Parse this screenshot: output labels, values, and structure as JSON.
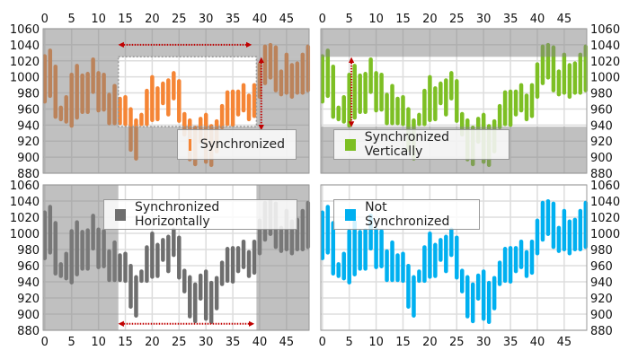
{
  "chart_data": [
    {
      "type": "range-bar",
      "legend": "Synchronized",
      "color": "#F58535",
      "sync": "both",
      "x_axis_position": "top",
      "y_axis_position": "left",
      "legend_position": "bottom-right",
      "window": {
        "x": [
          13.7,
          39.4
        ],
        "y": [
          938,
          1025
        ]
      }
    },
    {
      "type": "range-bar",
      "legend": "Synchronized Vertically",
      "color": "#7DBF24",
      "sync": "vertical",
      "x_axis_position": "top",
      "y_axis_position": "right",
      "legend_position": "bottom-left",
      "window": {
        "y": [
          938,
          1025
        ]
      }
    },
    {
      "type": "range-bar",
      "legend": "Synchronized Horizontally",
      "color": "#6E6E6E",
      "sync": "horizontal",
      "x_axis_position": "bottom",
      "y_axis_position": "left",
      "legend_position": "top-right",
      "window": {
        "x": [
          13.7,
          39.4
        ]
      }
    },
    {
      "type": "range-bar",
      "legend": "Not Synchronized",
      "color": "#00B0F0",
      "sync": "none",
      "x_axis_position": "bottom",
      "y_axis_position": "right",
      "legend_position": "top-left"
    }
  ],
  "shared": {
    "xlim": [
      -0.3,
      49.2
    ],
    "ylim": [
      880,
      1060
    ],
    "x_ticks": [
      0,
      5,
      10,
      15,
      20,
      25,
      30,
      35,
      40,
      45
    ],
    "y_ticks": [
      880,
      900,
      920,
      940,
      960,
      980,
      1000,
      1020,
      1040,
      1060
    ],
    "grid": true,
    "arrow_color": "#C00000",
    "low": [
      967,
      974,
      948,
      945,
      942,
      937,
      947,
      954,
      954,
      979,
      956,
      957,
      940,
      940,
      940,
      939,
      907,
      896,
      939,
      939,
      944,
      945,
      965,
      951,
      971,
      943,
      926,
      895,
      889,
      917,
      892,
      888,
      905,
      935,
      939,
      938,
      951,
      956,
      945,
      949,
      973,
      990,
      997,
      981,
      976,
      978,
      973,
      978,
      978,
      981
    ],
    "high": [
      1028,
      1035,
      1015,
      964,
      977,
      1005,
      1016,
      1004,
      1006,
      1024,
      1007,
      1005,
      980,
      991,
      975,
      977,
      962,
      948,
      955,
      985,
      1002,
      988,
      994,
      998,
      1007,
      997,
      956,
      948,
      939,
      950,
      955,
      941,
      947,
      966,
      983,
      984,
      984,
      992,
      979,
      992,
      1018,
      1040,
      1042,
      1039,
      1009,
      1030,
      1017,
      1019,
      1030,
      1040
    ]
  }
}
